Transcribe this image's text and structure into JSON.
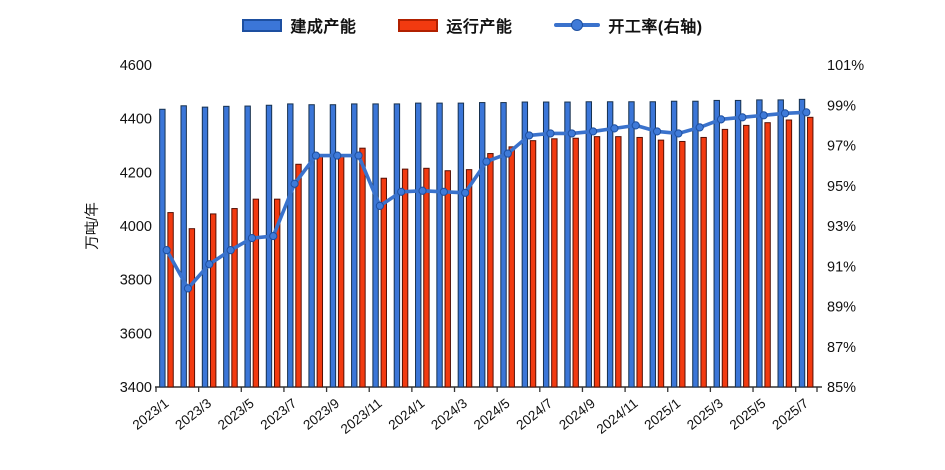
{
  "legend": {
    "built_label": "建成产能",
    "running_label": "运行产能",
    "rate_label": "开工率(右轴)"
  },
  "colors": {
    "built_fill": "#3b76d8",
    "built_edge": "#17314f",
    "running_fill": "#f23a10",
    "running_edge": "#551005",
    "rate_line": "#3a72cc",
    "marker_fill": "#3f7ad8",
    "marker_edge": "#1d4fa0",
    "axis": "#333333",
    "text": "#111111"
  },
  "chart_data": {
    "type": "bar+line",
    "categories": [
      "2023/1",
      "2023/2",
      "2023/3",
      "2023/4",
      "2023/5",
      "2023/6",
      "2023/7",
      "2023/8",
      "2023/9",
      "2023/10",
      "2023/11",
      "2023/12",
      "2024/1",
      "2024/2",
      "2024/3",
      "2024/4",
      "2024/5",
      "2024/6",
      "2024/7",
      "2024/8",
      "2024/9",
      "2024/10",
      "2024/11",
      "2024/12",
      "2025/1",
      "2025/2",
      "2025/3",
      "2025/4",
      "2025/5",
      "2025/6",
      "2025/7"
    ],
    "x_tick_labels": [
      "2023/1",
      "2023/3",
      "2023/5",
      "2023/7",
      "2023/9",
      "2023/11",
      "2024/1",
      "2024/3",
      "2024/5",
      "2024/7",
      "2024/9",
      "2024/11",
      "2025/1",
      "2025/3",
      "2025/5",
      "2025/7"
    ],
    "x_tick_every": 2,
    "grid": false,
    "legend_position": "top",
    "left_axis": {
      "title": "万吨/年",
      "min": 3400,
      "max": 4600,
      "step": 200,
      "tick_labels": [
        "4600",
        "4400",
        "4200",
        "4000",
        "3800",
        "3600",
        "3400"
      ]
    },
    "right_axis": {
      "min": 85,
      "max": 101,
      "step": 2,
      "tick_labels": [
        "101%",
        "99%",
        "97%",
        "95%",
        "93%",
        "91%",
        "89%",
        "87%",
        "85%"
      ]
    },
    "series": [
      {
        "name": "建成产能",
        "type": "bar",
        "axis": "left",
        "values": [
          4435,
          4448,
          4443,
          4446,
          4447,
          4450,
          4455,
          4452,
          4452,
          4455,
          4455,
          4455,
          4458,
          4458,
          4458,
          4460,
          4460,
          4462,
          4462,
          4462,
          4463,
          4463,
          4463,
          4463,
          4465,
          4465,
          4468,
          4468,
          4470,
          4470,
          4472
        ]
      },
      {
        "name": "运行产能",
        "type": "bar",
        "axis": "left",
        "values": [
          4050,
          3990,
          4045,
          4065,
          4100,
          4100,
          4230,
          4260,
          4265,
          4290,
          4178,
          4212,
          4215,
          4206,
          4210,
          4270,
          4295,
          4318,
          4325,
          4327,
          4333,
          4333,
          4330,
          4320,
          4315,
          4330,
          4360,
          4375,
          4385,
          4395,
          4405
        ]
      },
      {
        "name": "开工率(右轴)",
        "type": "line",
        "axis": "right",
        "values": [
          91.8,
          89.9,
          91.1,
          91.8,
          92.4,
          92.5,
          95.1,
          96.5,
          96.5,
          96.5,
          94.0,
          94.7,
          94.75,
          94.7,
          94.65,
          96.2,
          96.6,
          97.5,
          97.6,
          97.6,
          97.7,
          97.85,
          98.0,
          97.7,
          97.6,
          97.9,
          98.3,
          98.4,
          98.5,
          98.6,
          98.65
        ]
      }
    ]
  }
}
